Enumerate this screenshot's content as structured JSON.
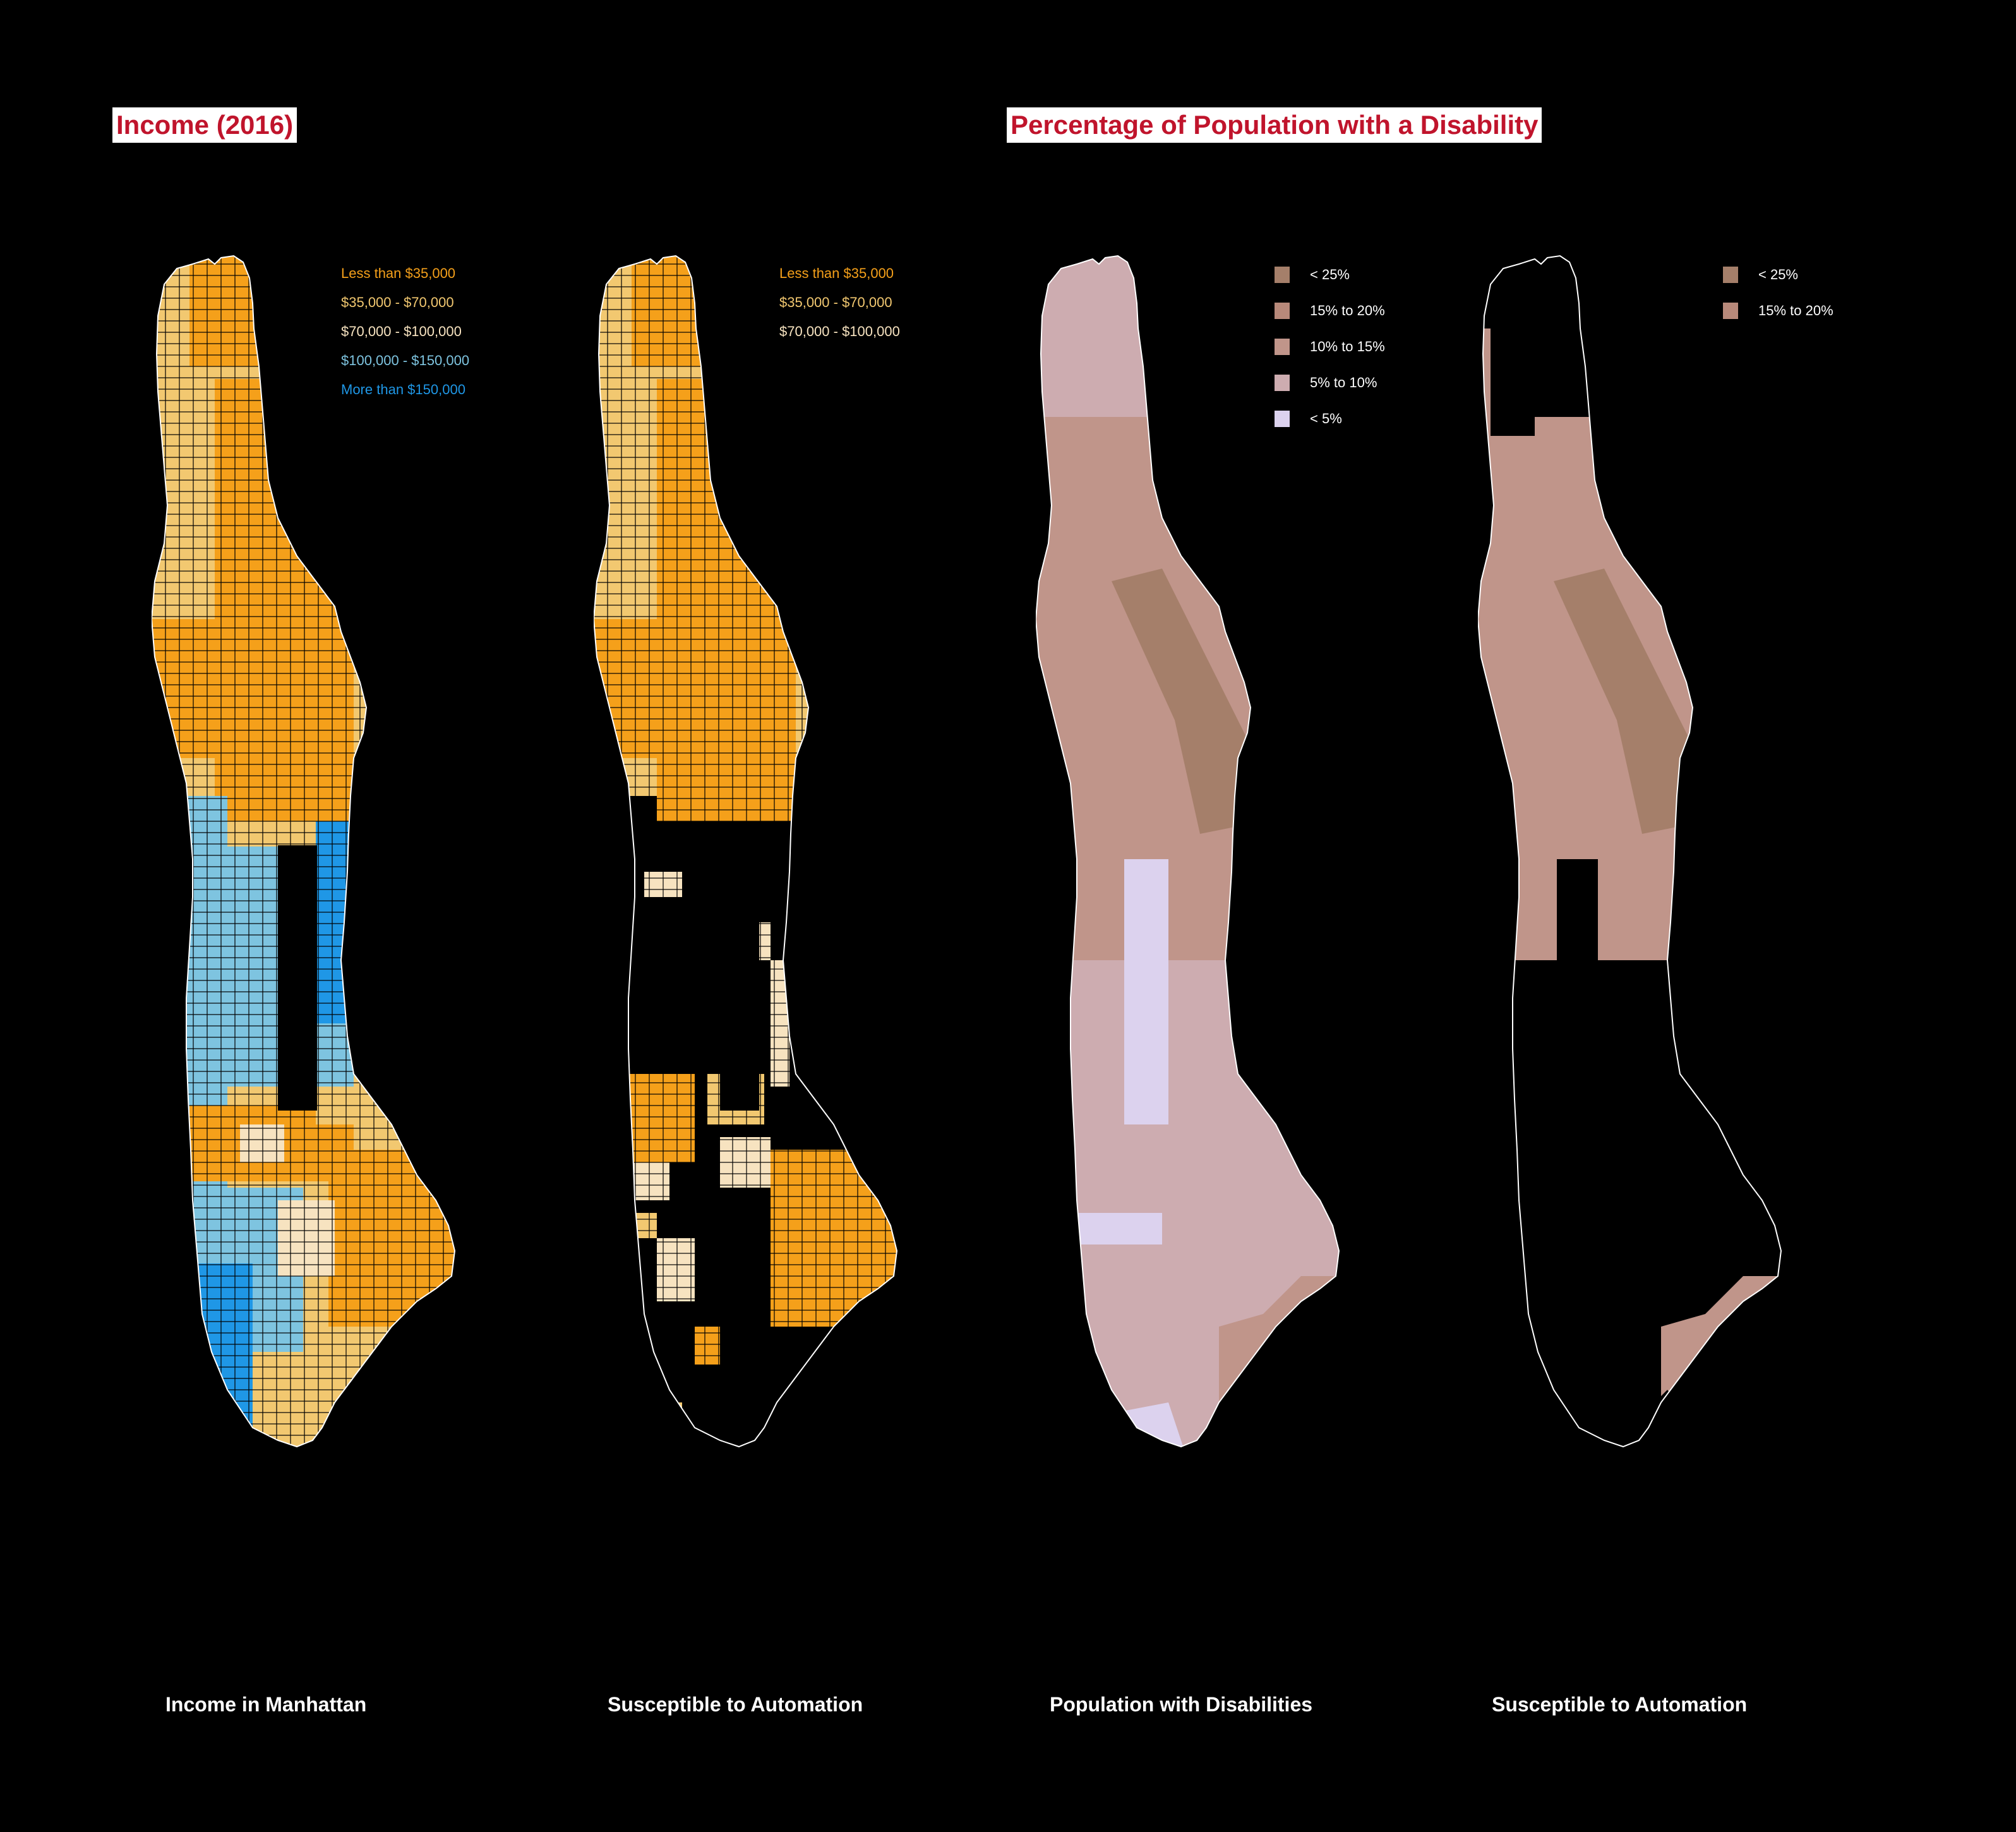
{
  "titles": {
    "income": "Income (2016)",
    "disability": "Percentage of Population with a Disability"
  },
  "panels": [
    {
      "caption": "Income in Manhattan",
      "legend": [
        {
          "label": "Less than $35,000",
          "color": "#f5a01a"
        },
        {
          "label": "$35,000 - $70,000",
          "color": "#f2c870"
        },
        {
          "label": "$70,000 - $100,000",
          "color": "#f7e3c0"
        },
        {
          "label": "$100,000 - $150,000",
          "color": "#7ec4e0"
        },
        {
          "label": "More than $150,000",
          "color": "#1f97e6"
        }
      ]
    },
    {
      "caption": "Susceptible to Automation",
      "legend": [
        {
          "label": "Less than $35,000",
          "color": "#f5a01a"
        },
        {
          "label": "$35,000 - $70,000",
          "color": "#f2c870"
        },
        {
          "label": "$70,000 - $100,000",
          "color": "#f7e3c0"
        }
      ]
    },
    {
      "caption": "Population with Disabilities",
      "legend": [
        {
          "label": "< 25%",
          "color": "#a57f6a"
        },
        {
          "label": "15% to 20%",
          "color": "#b8897a"
        },
        {
          "label": "10% to 15%",
          "color": "#c0958a"
        },
        {
          "label": "5% to 10%",
          "color": "#cdacb0"
        },
        {
          "label": "< 5%",
          "color": "#dcd2ee"
        }
      ]
    },
    {
      "caption": "Susceptible to Automation",
      "legend": [
        {
          "label": "< 25%",
          "color": "#a57f6a"
        },
        {
          "label": "15% to 20%",
          "color": "#b8897a"
        }
      ]
    }
  ]
}
